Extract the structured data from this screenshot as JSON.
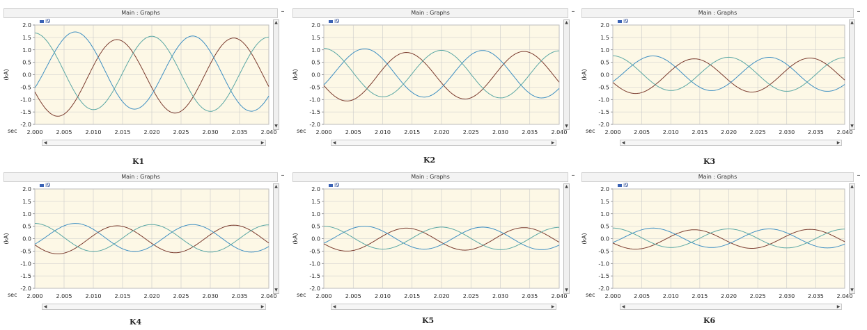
{
  "panel_title": "Main : Graphs",
  "legend_label": "i9",
  "y_unit": "(kA)",
  "x_unit": "sec",
  "colors": {
    "plot_bg": "#fdf8e6",
    "grid": "#c9c9c9",
    "phase_a": "#7a3b2e",
    "phase_b": "#3e8fc2",
    "phase_c": "#5aa7a4"
  },
  "chart_data": [
    {
      "type": "line",
      "caption": "K1",
      "ylim": [
        -2.0,
        2.0
      ],
      "xlim": [
        2.0,
        2.04
      ],
      "y_ticks": [
        "2.0",
        "1.5",
        "1.0",
        "0.5",
        "0.0",
        "-0.5",
        "-1.0",
        "-1.5",
        "-2.0"
      ],
      "x_ticks": [
        "2.000",
        "2.005",
        "2.010",
        "2.015",
        "2.020",
        "2.025",
        "2.030",
        "2.035",
        "2.040"
      ],
      "amplitude": 1.5,
      "peak_a": 2.014,
      "peak_b": 2.007,
      "peak_c": 2.02,
      "dc_offset_b": 0.35,
      "decay_ms": 15
    },
    {
      "type": "line",
      "caption": "K2",
      "ylim": [
        -2.0,
        2.0
      ],
      "xlim": [
        2.0,
        2.04
      ],
      "y_ticks": [
        "2.0",
        "1.5",
        "1.0",
        "0.5",
        "0.0",
        "-0.5",
        "-1.0",
        "-1.5",
        "-2.0"
      ],
      "x_ticks": [
        "2.000",
        "2.005",
        "2.010",
        "2.015",
        "2.020",
        "2.025",
        "2.030",
        "2.035",
        "2.040"
      ],
      "amplitude": 0.95,
      "peak_a": 2.014,
      "peak_b": 2.007,
      "peak_c": 2.02,
      "dc_offset_b": 0.15,
      "decay_ms": 15
    },
    {
      "type": "line",
      "caption": "K3",
      "ylim": [
        -2.0,
        2.0
      ],
      "xlim": [
        2.0,
        2.04
      ],
      "y_ticks": [
        "2.0",
        "1.5",
        "1.0",
        "0.5",
        "0.0",
        "-0.5",
        "-1.0",
        "-1.5",
        "-2.0"
      ],
      "x_ticks": [
        "2.000",
        "2.005",
        "2.010",
        "2.015",
        "2.020",
        "2.025",
        "2.030",
        "2.035",
        "2.040"
      ],
      "amplitude": 0.68,
      "peak_a": 2.014,
      "peak_b": 2.007,
      "peak_c": 2.02,
      "dc_offset_b": 0.12,
      "decay_ms": 15
    },
    {
      "type": "line",
      "caption": "K4",
      "ylim": [
        -2.0,
        2.0
      ],
      "xlim": [
        2.0,
        2.04
      ],
      "y_ticks": [
        "2.0",
        "1.5",
        "1.0",
        "0.5",
        "0.0",
        "-0.5",
        "-1.0",
        "-1.5",
        "-2.0"
      ],
      "x_ticks": [
        "2.000",
        "2.005",
        "2.010",
        "2.015",
        "2.020",
        "2.025",
        "2.030",
        "2.035",
        "2.040"
      ],
      "amplitude": 0.55,
      "peak_a": 2.014,
      "peak_b": 2.007,
      "peak_c": 2.02,
      "dc_offset_b": 0.1,
      "decay_ms": 15
    },
    {
      "type": "line",
      "caption": "K5",
      "ylim": [
        -2.0,
        2.0
      ],
      "xlim": [
        2.0,
        2.04
      ],
      "y_ticks": [
        "2.0",
        "1.5",
        "1.0",
        "0.5",
        "0.0",
        "-0.5",
        "-1.0",
        "-1.5",
        "-2.0"
      ],
      "x_ticks": [
        "2.000",
        "2.005",
        "2.010",
        "2.015",
        "2.020",
        "2.025",
        "2.030",
        "2.035",
        "2.040"
      ],
      "amplitude": 0.45,
      "peak_a": 2.014,
      "peak_b": 2.007,
      "peak_c": 2.02,
      "dc_offset_b": 0.08,
      "decay_ms": 15
    },
    {
      "type": "line",
      "caption": "K6",
      "ylim": [
        -2.0,
        2.0
      ],
      "xlim": [
        2.0,
        2.04
      ],
      "y_ticks": [
        "2.0",
        "1.5",
        "1.0",
        "0.5",
        "0.0",
        "-0.5",
        "-1.0",
        "-1.5",
        "-2.0"
      ],
      "x_ticks": [
        "2.000",
        "2.005",
        "2.010",
        "2.015",
        "2.020",
        "2.025",
        "2.030",
        "2.035",
        "2.040"
      ],
      "amplitude": 0.38,
      "peak_a": 2.014,
      "peak_b": 2.007,
      "peak_c": 2.02,
      "dc_offset_b": 0.07,
      "decay_ms": 15
    }
  ]
}
